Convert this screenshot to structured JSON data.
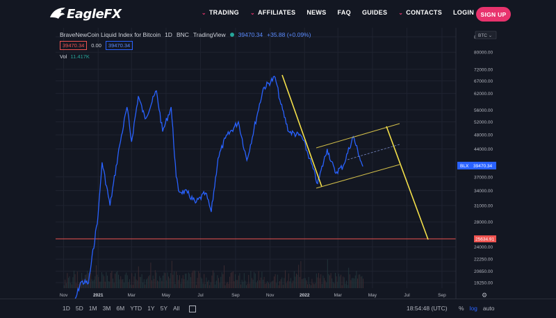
{
  "nav": {
    "logo": "EagleFX",
    "links": [
      {
        "label": "TRADING",
        "dropdown": true
      },
      {
        "label": "AFFILIATES",
        "dropdown": true
      },
      {
        "label": "NEWS",
        "dropdown": false
      },
      {
        "label": "FAQ",
        "dropdown": false
      },
      {
        "label": "GUIDES",
        "dropdown": false
      },
      {
        "label": "CONTACTS",
        "dropdown": true
      },
      {
        "label": "LOGIN",
        "dropdown": false
      }
    ],
    "signup": "SIGN UP",
    "accent": "#e8336d"
  },
  "legend": {
    "title": "BraveNewCoin Liquid Index for Bitcoin",
    "interval": "1D",
    "exchange": "BNC",
    "source": "TradingView",
    "last": "39470.34",
    "change": "+35.88 (+0.09%)",
    "bid": "39470.34",
    "spread": "0.00",
    "ask": "39470.34",
    "vol_label": "Vol",
    "vol_value": "11.417K"
  },
  "chart_data": {
    "type": "line",
    "series": [
      {
        "name": "BLX",
        "x": [
          "2020-11-15",
          "2020-12-01",
          "2020-12-15",
          "2021-01-01",
          "2021-01-08",
          "2021-01-22",
          "2021-02-08",
          "2021-02-21",
          "2021-03-01",
          "2021-03-13",
          "2021-03-25",
          "2021-04-14",
          "2021-04-25",
          "2021-05-10",
          "2021-05-19",
          "2021-05-23",
          "2021-06-08",
          "2021-06-22",
          "2021-07-10",
          "2021-07-20",
          "2021-08-01",
          "2021-08-14",
          "2021-09-06",
          "2021-09-21",
          "2021-10-10",
          "2021-10-20",
          "2021-11-10",
          "2021-11-20",
          "2021-12-04",
          "2021-12-27",
          "2022-01-10",
          "2022-01-24",
          "2022-02-10",
          "2022-02-24",
          "2022-03-10",
          "2022-03-28",
          "2022-04-08",
          "2022-04-14"
        ],
        "y": [
          16000,
          19300,
          19200,
          29300,
          40500,
          31000,
          45000,
          57000,
          46000,
          61000,
          53000,
          63000,
          49000,
          57000,
          37000,
          34000,
          33500,
          31500,
          33500,
          29800,
          41500,
          47000,
          52000,
          41000,
          55000,
          64000,
          68500,
          58000,
          49000,
          47500,
          41500,
          35500,
          44000,
          38000,
          39500,
          47500,
          42000,
          39470.34
        ]
      }
    ],
    "y_axis_scale": "log",
    "y_ticks": [
      "88000.00",
      "80000.00",
      "72000.00",
      "67000.00",
      "62000.00",
      "56000.00",
      "52000.00",
      "48000.00",
      "44000.00",
      "37000.00",
      "34000.00",
      "31000.00",
      "28000.00",
      "24000.00",
      "22250.00",
      "20650.00",
      "19250.00"
    ],
    "x_ticks": [
      {
        "label": "Nov",
        "bold": false
      },
      {
        "label": "2021",
        "bold": true
      },
      {
        "label": "Mar",
        "bold": false
      },
      {
        "label": "May",
        "bold": false
      },
      {
        "label": "Jul",
        "bold": false
      },
      {
        "label": "Sep",
        "bold": false
      },
      {
        "label": "Nov",
        "bold": false
      },
      {
        "label": "2022",
        "bold": true
      },
      {
        "label": "Mar",
        "bold": false
      },
      {
        "label": "May",
        "bold": false
      },
      {
        "label": "Jul",
        "bold": false
      },
      {
        "label": "Sep",
        "bold": false
      }
    ],
    "currency_tag": "BTC",
    "last_price_label": "BLX",
    "last_price": "39470.34",
    "horizontal_level": "25634.91",
    "annotations": {
      "trendline_color": "#f5e14a",
      "channel_color": "#d4c04a",
      "level_color": "#ef5350"
    },
    "line_color": "#2962ff",
    "grid": true
  },
  "bottombar": {
    "periods": [
      "1D",
      "5D",
      "1M",
      "3M",
      "6M",
      "YTD",
      "1Y",
      "5Y",
      "All"
    ],
    "time": "18:54:48 (UTC)",
    "percent": "%",
    "log": "log",
    "auto": "auto"
  }
}
